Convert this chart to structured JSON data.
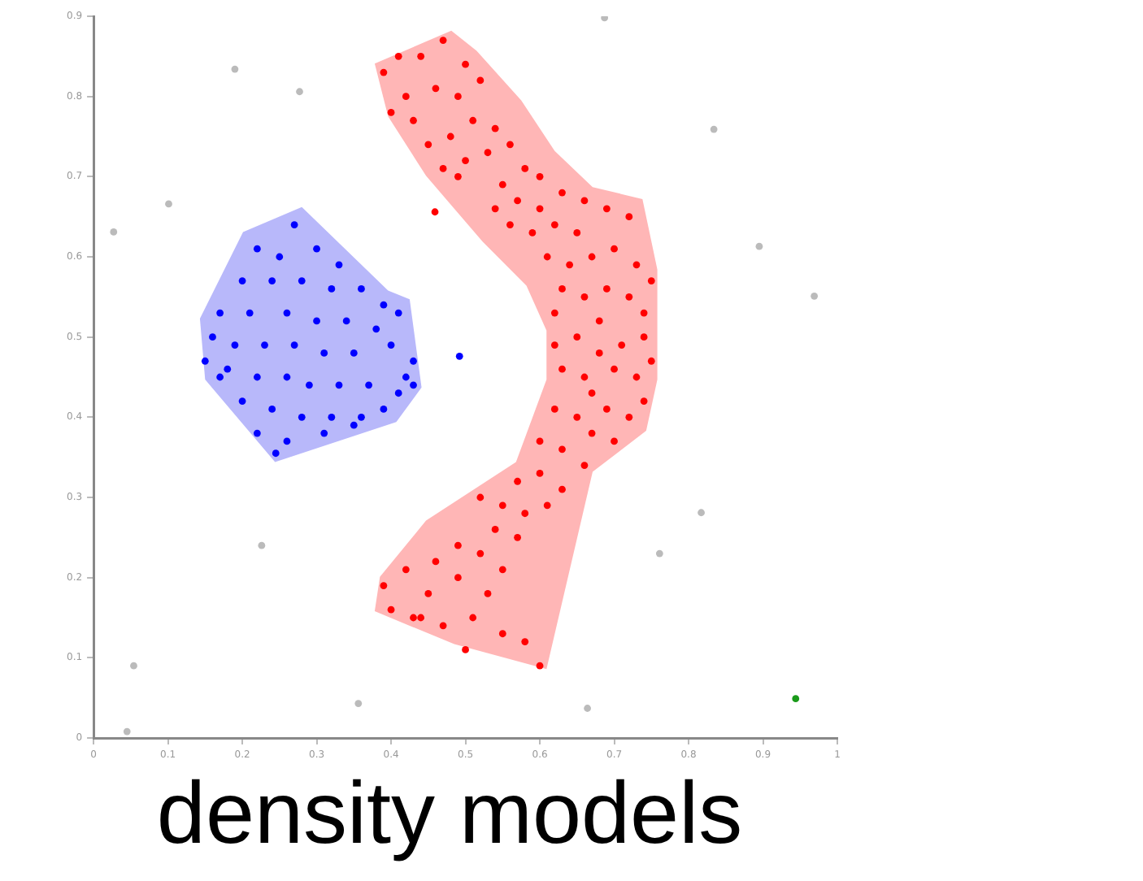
{
  "chart_data": {
    "type": "scatter",
    "title": "density models",
    "xlim": [
      0,
      1
    ],
    "ylim": [
      0,
      0.9
    ],
    "xticks": [
      0,
      0.1,
      0.2,
      0.3,
      0.4,
      0.5,
      0.6,
      0.7,
      0.8,
      0.9,
      1
    ],
    "yticks": [
      0,
      0.1,
      0.2,
      0.3,
      0.4,
      0.5,
      0.6,
      0.7,
      0.8,
      0.9
    ],
    "grid": false,
    "legend": false,
    "marker": "circle",
    "series": [
      {
        "type": "area",
        "marker": "none",
        "color": "#b8b8fa",
        "x": [
          0.28,
          0.396,
          0.425,
          0.441,
          0.407,
          0.244,
          0.15,
          0.143,
          0.201
        ],
        "values": [
          0.662,
          0.558,
          0.547,
          0.437,
          0.394,
          0.344,
          0.447,
          0.523,
          0.631
        ]
      },
      {
        "type": "area",
        "marker": "none",
        "color": "#ffb6b6",
        "x": [
          0.378,
          0.481,
          0.515,
          0.575,
          0.62,
          0.671,
          0.738,
          0.758,
          0.758,
          0.743,
          0.671,
          0.609,
          0.485,
          0.378,
          0.385,
          0.447,
          0.568,
          0.609,
          0.609,
          0.582,
          0.523,
          0.447,
          0.396
        ],
        "values": [
          0.841,
          0.882,
          0.857,
          0.795,
          0.732,
          0.687,
          0.672,
          0.584,
          0.447,
          0.383,
          0.332,
          0.086,
          0.117,
          0.158,
          0.201,
          0.271,
          0.344,
          0.447,
          0.508,
          0.564,
          0.619,
          0.701,
          0.775
        ]
      },
      {
        "color": "#0000ff",
        "x": [
          0.27,
          0.22,
          0.25,
          0.3,
          0.33,
          0.2,
          0.24,
          0.28,
          0.32,
          0.36,
          0.39,
          0.41,
          0.17,
          0.21,
          0.26,
          0.3,
          0.34,
          0.38,
          0.16,
          0.19,
          0.23,
          0.27,
          0.31,
          0.35,
          0.4,
          0.43,
          0.18,
          0.22,
          0.26,
          0.29,
          0.33,
          0.37,
          0.41,
          0.2,
          0.24,
          0.28,
          0.32,
          0.36,
          0.39,
          0.22,
          0.26,
          0.31,
          0.35,
          0.245,
          0.17,
          0.15,
          0.42,
          0.43,
          0.492
        ],
        "values": [
          0.64,
          0.61,
          0.6,
          0.61,
          0.59,
          0.57,
          0.57,
          0.57,
          0.56,
          0.56,
          0.54,
          0.53,
          0.53,
          0.53,
          0.53,
          0.52,
          0.52,
          0.51,
          0.5,
          0.49,
          0.49,
          0.49,
          0.48,
          0.48,
          0.49,
          0.47,
          0.46,
          0.45,
          0.45,
          0.44,
          0.44,
          0.44,
          0.43,
          0.42,
          0.41,
          0.4,
          0.4,
          0.4,
          0.41,
          0.38,
          0.37,
          0.38,
          0.39,
          0.355,
          0.45,
          0.47,
          0.45,
          0.44,
          0.476
        ]
      },
      {
        "color": "#ff0000",
        "x": [
          0.39,
          0.41,
          0.44,
          0.47,
          0.5,
          0.42,
          0.46,
          0.49,
          0.43,
          0.52,
          0.4,
          0.45,
          0.48,
          0.51,
          0.54,
          0.47,
          0.5,
          0.53,
          0.56,
          0.58,
          0.55,
          0.49,
          0.6,
          0.54,
          0.57,
          0.6,
          0.63,
          0.66,
          0.59,
          0.62,
          0.65,
          0.69,
          0.72,
          0.56,
          0.61,
          0.64,
          0.67,
          0.7,
          0.73,
          0.63,
          0.66,
          0.69,
          0.72,
          0.75,
          0.62,
          0.68,
          0.74,
          0.62,
          0.65,
          0.68,
          0.71,
          0.74,
          0.63,
          0.66,
          0.7,
          0.73,
          0.75,
          0.67,
          0.62,
          0.65,
          0.69,
          0.72,
          0.74,
          0.6,
          0.63,
          0.67,
          0.7,
          0.66,
          0.57,
          0.6,
          0.63,
          0.55,
          0.58,
          0.61,
          0.52,
          0.54,
          0.57,
          0.49,
          0.52,
          0.55,
          0.46,
          0.49,
          0.53,
          0.42,
          0.45,
          0.39,
          0.4,
          0.43,
          0.47,
          0.51,
          0.55,
          0.58,
          0.5,
          0.44,
          0.6,
          0.459
        ],
        "values": [
          0.83,
          0.85,
          0.85,
          0.87,
          0.84,
          0.8,
          0.81,
          0.8,
          0.77,
          0.82,
          0.78,
          0.74,
          0.75,
          0.77,
          0.76,
          0.71,
          0.72,
          0.73,
          0.74,
          0.71,
          0.69,
          0.7,
          0.7,
          0.66,
          0.67,
          0.66,
          0.68,
          0.67,
          0.63,
          0.64,
          0.63,
          0.66,
          0.65,
          0.64,
          0.6,
          0.59,
          0.6,
          0.61,
          0.59,
          0.56,
          0.55,
          0.56,
          0.55,
          0.57,
          0.53,
          0.52,
          0.53,
          0.49,
          0.5,
          0.48,
          0.49,
          0.5,
          0.46,
          0.45,
          0.46,
          0.45,
          0.47,
          0.43,
          0.41,
          0.4,
          0.41,
          0.4,
          0.42,
          0.37,
          0.36,
          0.38,
          0.37,
          0.34,
          0.32,
          0.33,
          0.31,
          0.29,
          0.28,
          0.29,
          0.3,
          0.26,
          0.25,
          0.24,
          0.23,
          0.21,
          0.22,
          0.2,
          0.18,
          0.21,
          0.18,
          0.19,
          0.16,
          0.15,
          0.14,
          0.15,
          0.13,
          0.12,
          0.11,
          0.15,
          0.09,
          0.656
        ]
      },
      {
        "color": "#bbbbbb",
        "x": [
          0.19,
          0.277,
          0.101,
          0.027,
          0.687,
          0.834,
          0.895,
          0.969,
          0.226,
          0.817,
          0.761,
          0.054,
          0.356,
          0.664,
          0.045
        ],
        "values": [
          0.834,
          0.806,
          0.666,
          0.631,
          0.898,
          0.759,
          0.613,
          0.551,
          0.24,
          0.281,
          0.23,
          0.09,
          0.043,
          0.037,
          0.008
        ]
      },
      {
        "color": "#1a9a1a",
        "x": [
          0.944
        ],
        "values": [
          0.049
        ]
      }
    ]
  }
}
